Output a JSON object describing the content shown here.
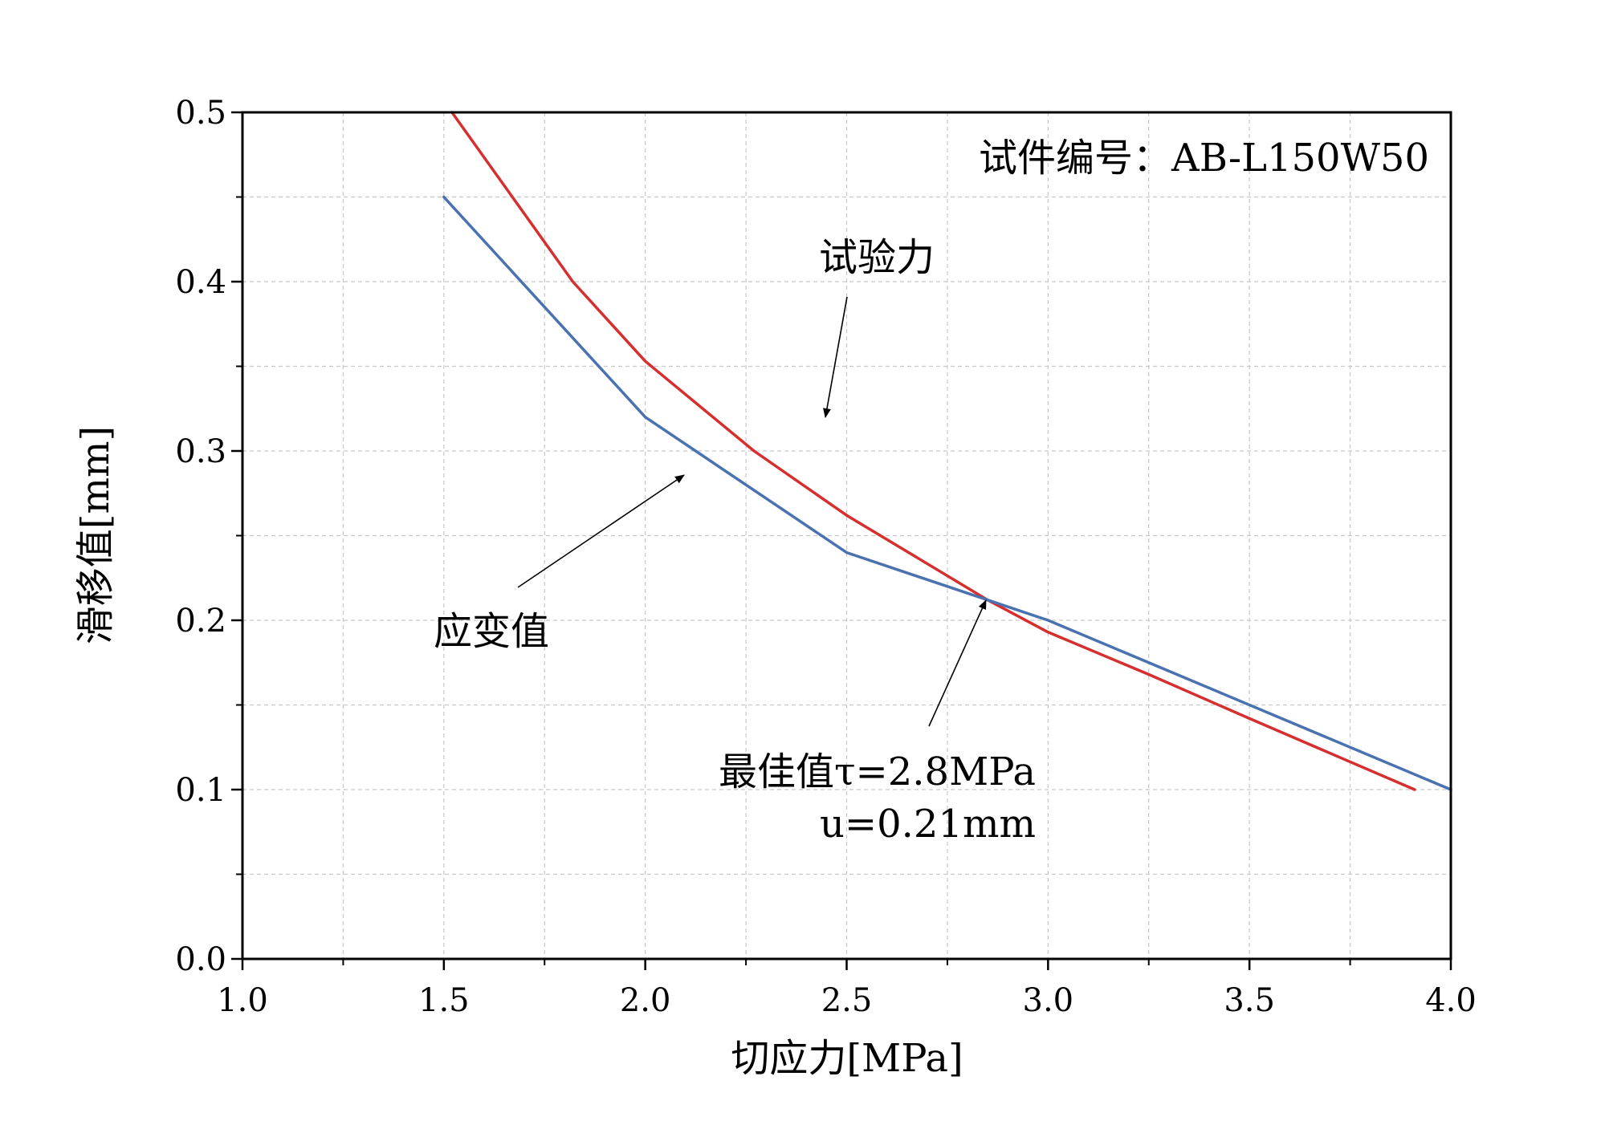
{
  "chart_data": {
    "type": "line",
    "xlabel": "切应力[MPa]",
    "ylabel": "滑移值[mm]",
    "xlim": [
      1.0,
      4.0
    ],
    "ylim": [
      0.0,
      0.5
    ],
    "x_ticks": [
      "1.0",
      "1.5",
      "2.0",
      "2.5",
      "3.0",
      "3.5",
      "4.0"
    ],
    "y_ticks": [
      "0.0",
      "0.1",
      "0.2",
      "0.3",
      "0.4",
      "0.5"
    ],
    "grid": true,
    "series": [
      {
        "name": "试验力",
        "color": "#d62f2f",
        "x": [
          1.52,
          1.82,
          2.0,
          2.27,
          2.5,
          2.85,
          3.0,
          3.25,
          3.5,
          3.91
        ],
        "y": [
          0.5,
          0.4,
          0.353,
          0.3,
          0.262,
          0.212,
          0.193,
          0.168,
          0.142,
          0.1
        ]
      },
      {
        "name": "应变值",
        "color": "#4a72b0",
        "x": [
          1.5,
          2.0,
          2.5,
          3.0,
          4.0
        ],
        "y": [
          0.45,
          0.32,
          0.24,
          0.2,
          0.1
        ]
      }
    ],
    "annotations": {
      "specimen": "试件编号：AB-L150W50",
      "force": "试验力",
      "strain": "应变值",
      "optimum_line1": "最佳值τ=2.8MPa",
      "optimum_line2": "u=0.21mm"
    }
  }
}
